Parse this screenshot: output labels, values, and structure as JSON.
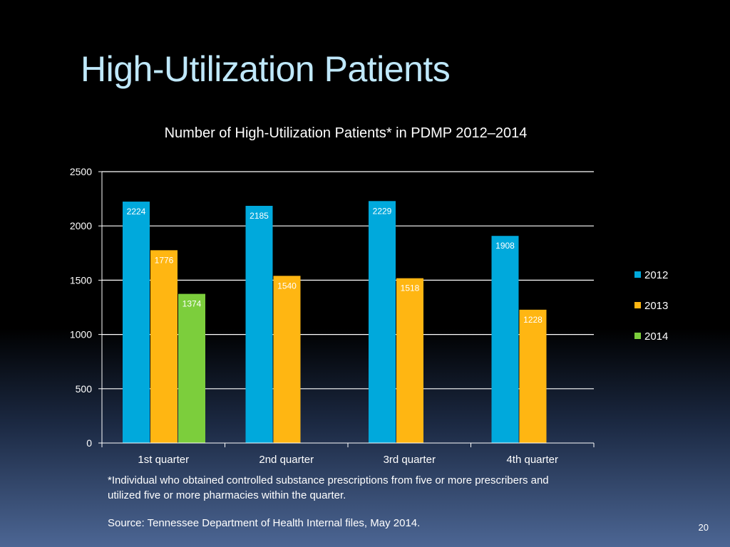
{
  "slide": {
    "title": "High-Utilization Patients",
    "footnote": "*Individual who obtained controlled substance prescriptions from five or more prescribers and utilized five or more pharmacies within the quarter.",
    "source": "Source: Tennessee Department of Health Internal files, May 2014.",
    "page_number": "20"
  },
  "chart_data": {
    "type": "bar",
    "title": "Number of High-Utilization Patients* in PDMP 2012–2014",
    "xlabel": "",
    "ylabel": "",
    "categories": [
      "1st quarter",
      "2nd quarter",
      "3rd quarter",
      "4th quarter"
    ],
    "series": [
      {
        "name": "2012",
        "values": [
          2224,
          2185,
          2229,
          1908
        ],
        "color": "#00a9dc"
      },
      {
        "name": "2013",
        "values": [
          1776,
          1540,
          1518,
          1228
        ],
        "color": "#ffb612"
      },
      {
        "name": "2014",
        "values": [
          1374,
          null,
          null,
          null
        ],
        "color": "#7cce3c"
      }
    ],
    "ylim": [
      0,
      2500
    ],
    "yticks": [
      0,
      500,
      1000,
      1500,
      2000,
      2500
    ],
    "grid": true,
    "legend_position": "right",
    "data_labels": true
  }
}
